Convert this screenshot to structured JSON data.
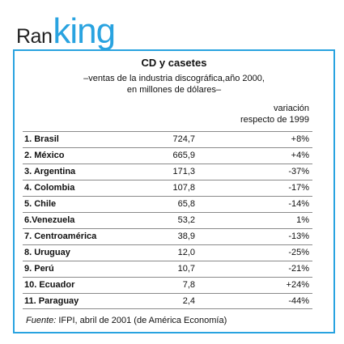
{
  "brand": {
    "part1": "Ran",
    "part2": "king",
    "accent_color": "#29a3e0"
  },
  "title": "CD y casetes",
  "subtitle": {
    "line1": "–ventas de la industria discográfica,año 2000,",
    "line2": "en millones de dólares–"
  },
  "header": {
    "change_line1": "variación",
    "change_line2": "respecto de 1999"
  },
  "rows": [
    {
      "name": "1. Brasil",
      "value": "724,7",
      "change": "+8%"
    },
    {
      "name": "2. México",
      "value": "665,9",
      "change": "+4%"
    },
    {
      "name": "3. Argentina",
      "value": "171,3",
      "change": "-37%"
    },
    {
      "name": "4. Colombia",
      "value": "107,8",
      "change": "-17%"
    },
    {
      "name": "5. Chile",
      "value": "65,8",
      "change": "-14%"
    },
    {
      "name": "6.Venezuela",
      "value": "53,2",
      "change": "1%"
    },
    {
      "name": "7. Centroamérica",
      "value": "38,9",
      "change": "-13%"
    },
    {
      "name": "8. Uruguay",
      "value": "12,0",
      "change": "-25%"
    },
    {
      "name": "9. Perú",
      "value": "10,7",
      "change": "-21%"
    },
    {
      "name": "10. Ecuador",
      "value": "7,8",
      "change": "+24%"
    },
    {
      "name": "11. Paraguay",
      "value": "2,4",
      "change": "-44%"
    }
  ],
  "footer": {
    "label": "Fuente:",
    "text": " IFPI, abril de 2001 (de América Economía)"
  }
}
